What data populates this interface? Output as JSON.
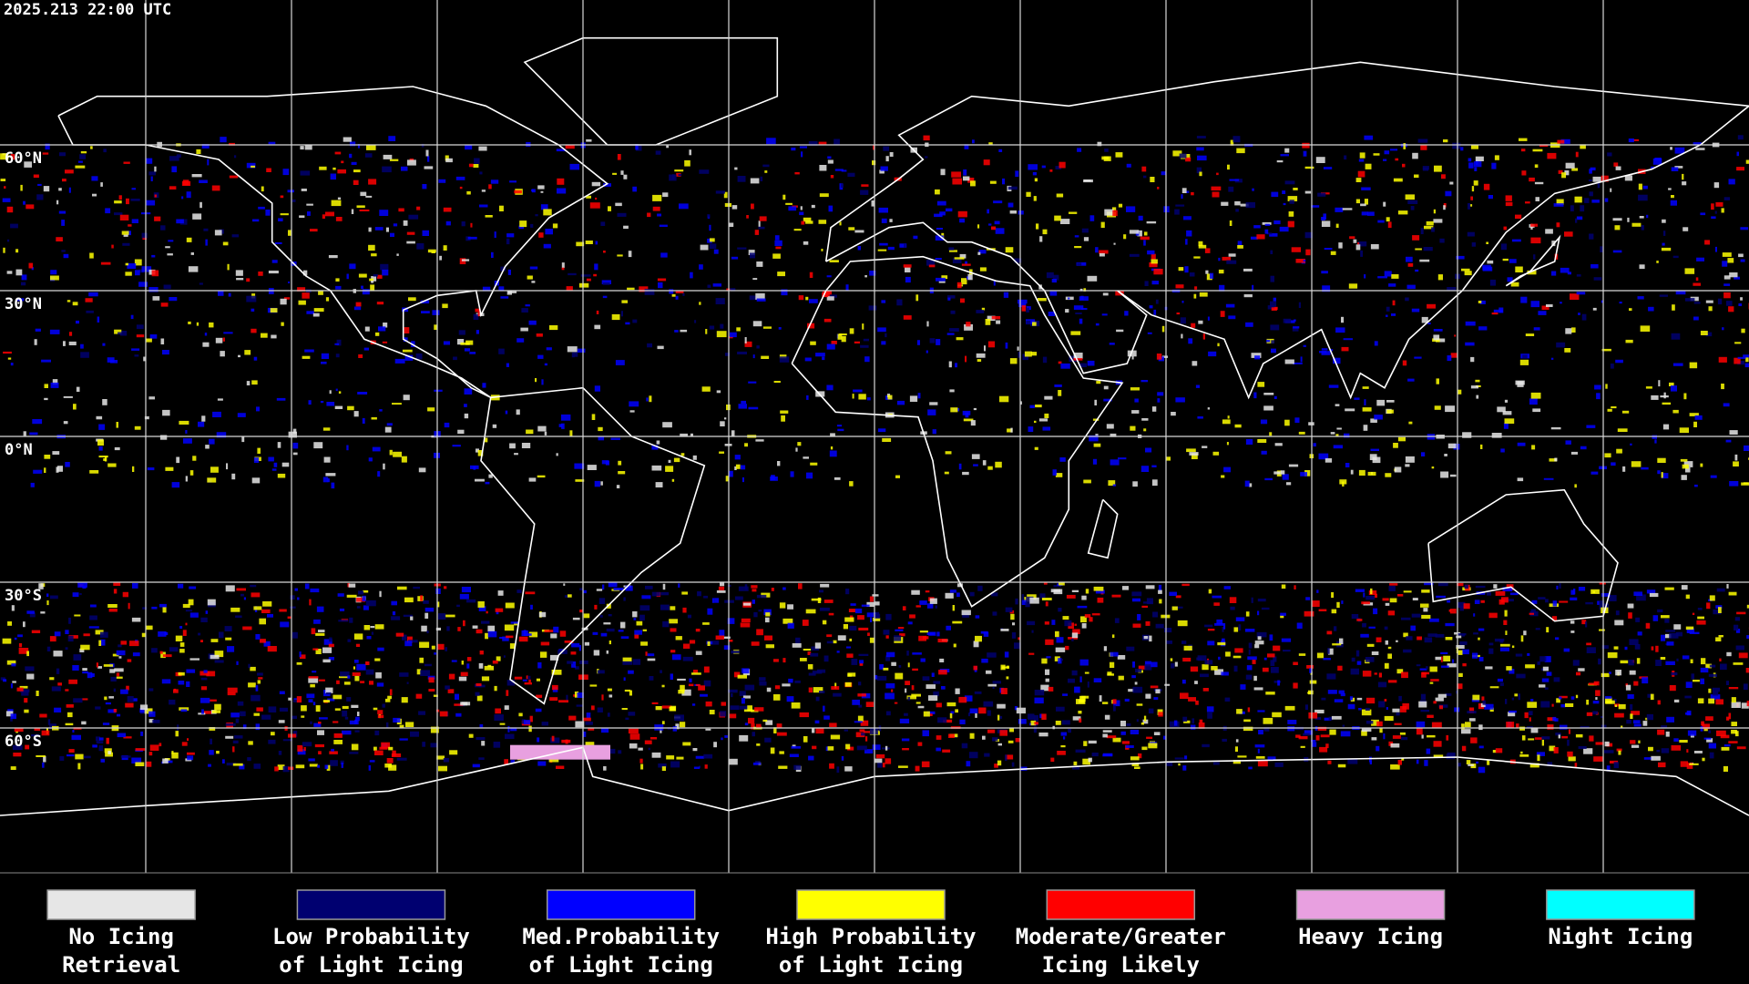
{
  "header": {
    "title": "2025.213 22:00 UTC"
  },
  "grid": {
    "lat_labels": [
      "60°N",
      "30°N",
      "0°N",
      "30°S",
      "60°S"
    ]
  },
  "legend": {
    "items": [
      {
        "lines": [
          "No Icing",
          "Retrieval"
        ],
        "color": "#e6e6e6"
      },
      {
        "lines": [
          "Low Probability",
          "of Light Icing"
        ],
        "color": "#000070"
      },
      {
        "lines": [
          "Med.Probability",
          "of Light Icing"
        ],
        "color": "#0000ff"
      },
      {
        "lines": [
          "High Probability",
          "of Light Icing"
        ],
        "color": "#ffff00"
      },
      {
        "lines": [
          "Moderate/Greater",
          "Icing Likely"
        ],
        "color": "#ff0000"
      },
      {
        "lines": [
          "Heavy Icing"
        ],
        "color": "#e8a0e0"
      },
      {
        "lines": [
          "Night Icing"
        ],
        "color": "#00ffff"
      }
    ]
  }
}
